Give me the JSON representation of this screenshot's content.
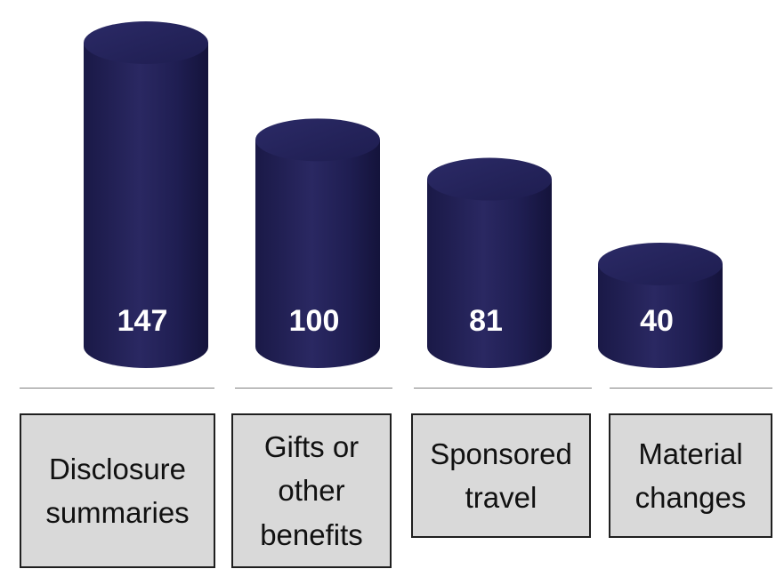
{
  "chart_data": {
    "type": "bar",
    "style": "3d-cylinder",
    "categories": [
      "Disclosure summaries",
      "Gifts or other benefits",
      "Sponsored travel",
      "Material changes"
    ],
    "values": [
      147,
      100,
      81,
      40
    ],
    "title": "",
    "xlabel": "",
    "ylabel": "",
    "ylim": [
      0,
      147
    ],
    "grid": false,
    "legend": "none",
    "colors": {
      "bar": "#232156",
      "bar_highlight": "#3a3a7a",
      "label_box": "#d9d9d9"
    }
  }
}
